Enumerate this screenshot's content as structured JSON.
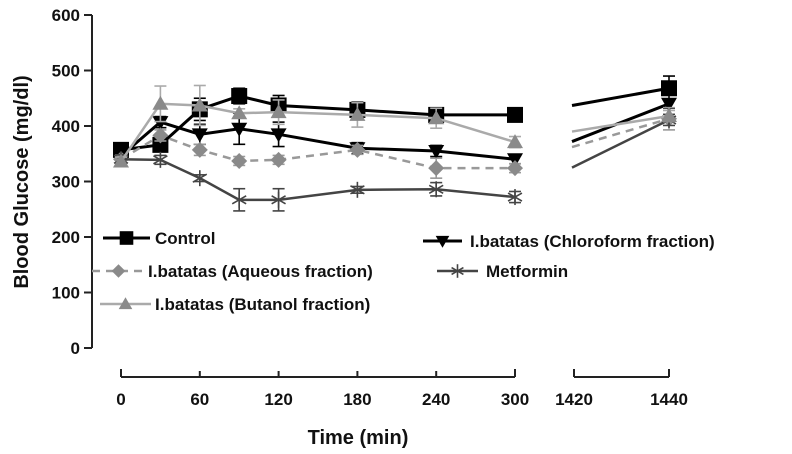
{
  "chart_data": {
    "type": "line",
    "title": "",
    "xlabel": "Time (min)",
    "ylabel": "Blood Glucose (mg/dl)",
    "ylim": [
      0,
      600
    ],
    "yticks": [
      "0",
      "100",
      "200",
      "300",
      "400",
      "500",
      "600"
    ],
    "ytick_values": [
      0,
      100,
      200,
      300,
      400,
      500,
      600
    ],
    "x_segments": [
      {
        "range": [
          0,
          300
        ],
        "ticks": [
          0,
          60,
          120,
          180,
          240,
          300
        ],
        "tick_labels": [
          "0",
          "60",
          "120",
          "180",
          "240",
          "300"
        ]
      },
      {
        "range": [
          1420,
          1440
        ],
        "ticks": [
          1420,
          1440
        ],
        "tick_labels": [
          "1420",
          "1440"
        ]
      }
    ],
    "x": [
      0,
      30,
      60,
      90,
      120,
      180,
      240,
      300,
      1440
    ],
    "series": [
      {
        "name": "Control",
        "color": "#000000",
        "marker": "square",
        "dash": "solid",
        "values": [
          357,
          366,
          430,
          454,
          437,
          429,
          420,
          420,
          468
        ],
        "errors": [
          10,
          8,
          20,
          14,
          18,
          14,
          10,
          8,
          22
        ],
        "break_start_value": 437
      },
      {
        "name": "I.batatas (Chloroform fraction)",
        "color": "#000000",
        "marker": "triangle-down",
        "dash": "solid",
        "values": [
          346,
          407,
          385,
          395,
          385,
          360,
          355,
          340,
          440
        ],
        "errors": [
          8,
          10,
          18,
          28,
          22,
          10,
          10,
          8,
          8
        ],
        "break_start_value": 372
      },
      {
        "name": "I.batatas (Aqueous fraction)",
        "color": "#999999",
        "marker": "diamond",
        "dash": "dashed",
        "values": [
          340,
          383,
          357,
          337,
          339,
          357,
          324,
          324,
          413
        ],
        "errors": [
          8,
          10,
          10,
          8,
          8,
          8,
          18,
          8,
          20
        ],
        "break_start_value": 362
      },
      {
        "name": "Metformin",
        "color": "#444444",
        "marker": "asterisk",
        "dash": "solid",
        "values": [
          340,
          339,
          306,
          267,
          267,
          285,
          286,
          272,
          411
        ],
        "errors": [
          8,
          8,
          6,
          20,
          20,
          6,
          12,
          10,
          10
        ],
        "break_start_value": 325
      },
      {
        "name": "I.batatas (Butanol fraction)",
        "color": "#aaaaaa",
        "marker": "triangle-up",
        "dash": "solid",
        "values": [
          336,
          440,
          437,
          423,
          425,
          420,
          414,
          371,
          418
        ],
        "errors": [
          8,
          32,
          36,
          8,
          22,
          22,
          18,
          10,
          10
        ],
        "break_start_value": 390
      }
    ],
    "legend": [
      {
        "label": "Control",
        "series": 0
      },
      {
        "label": "I.batatas (Chloroform fraction)",
        "series": 1
      },
      {
        "label": "I.batatas (Aqueous fraction)",
        "series": 2
      },
      {
        "label": "Metformin",
        "series": 3
      },
      {
        "label": "I.batatas (Butanol fraction)",
        "series": 4
      }
    ],
    "legend_placement": "lower-left inside plot",
    "grid": false
  }
}
